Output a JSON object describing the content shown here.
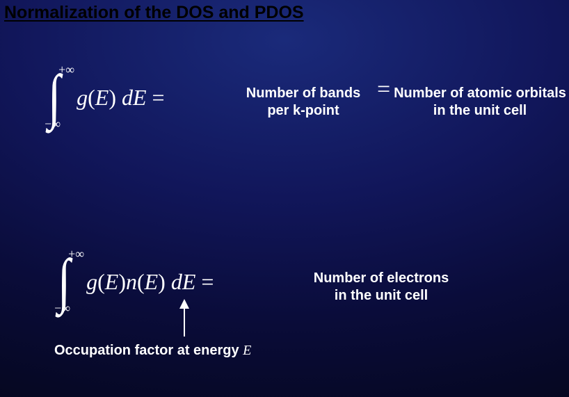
{
  "title": "Normalization of the DOS and PDOS",
  "eq1": {
    "upper_limit": "+∞",
    "lower_limit": "−∞",
    "integrand_html": "<span class='it'>g</span><span class='rm'>(</span><span class='it'>E</span><span class='rm'>)</span>&nbsp;<span class='it'>dE</span>&nbsp;<span class='rm'>=</span>",
    "mid_label_line1": "Number of bands",
    "mid_label_line2": "per k-point",
    "right_label_line1": "Number of atomic orbitals",
    "right_label_line2": "in the unit cell"
  },
  "eq2": {
    "upper_limit": "+∞",
    "lower_limit": "−∞",
    "integrand_html": "<span class='it'>g</span><span class='rm'>(</span><span class='it'>E</span><span class='rm'>)</span><span class='it'>n</span><span class='rm'>(</span><span class='it'>E</span><span class='rm'>)</span>&nbsp;<span class='it'>dE</span>&nbsp;<span class='rm'>=</span>",
    "right_label_line1": "Number of electrons",
    "right_label_line2": "in the unit cell"
  },
  "occupation_label_prefix": "Occupation factor at energy ",
  "occupation_label_var": "E",
  "colors": {
    "title": "#000000",
    "text": "#ffffff",
    "arrow": "#ffffff"
  }
}
